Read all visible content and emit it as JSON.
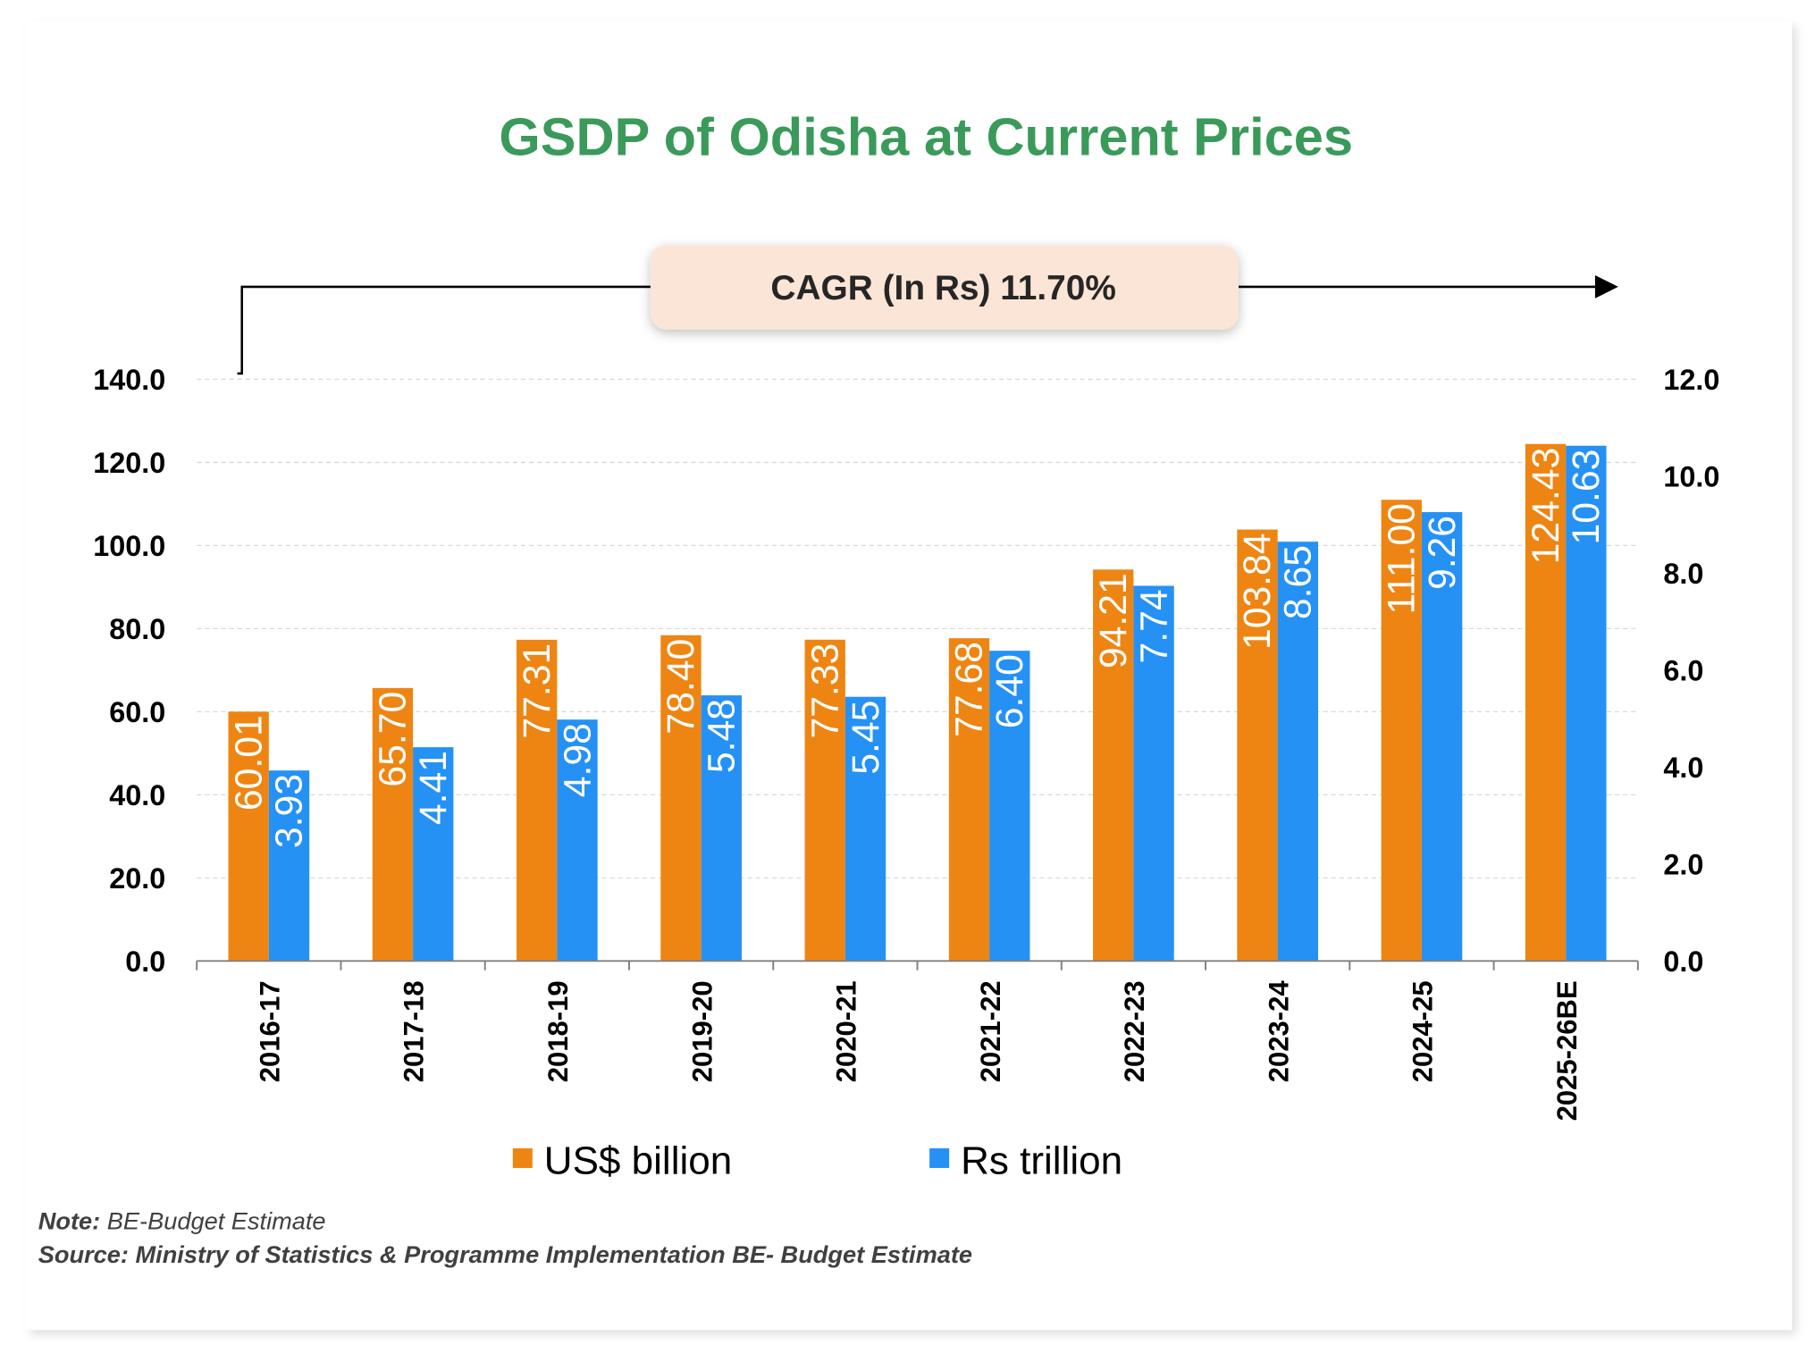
{
  "chart_data": {
    "type": "bar",
    "title": "GSDP of Odisha at Current Prices",
    "annotation": "CAGR (In Rs) 11.70%",
    "categories": [
      "2016-17",
      "2017-18",
      "2018-19",
      "2019-20",
      "2020-21",
      "2021-22",
      "2022-23",
      "2023-24",
      "2024-25",
      "2025-26BE"
    ],
    "series": [
      {
        "name": "US$ billion",
        "axis": "left",
        "color": "#EE8512",
        "values": [
          60.01,
          65.7,
          77.31,
          78.4,
          77.33,
          77.68,
          94.21,
          103.84,
          111.0,
          124.43
        ],
        "labels": [
          "60.01",
          "65.70",
          "77.31",
          "78.40",
          "77.33",
          "77.68",
          "94.21",
          "103.84",
          "111.00",
          "124.43"
        ]
      },
      {
        "name": "Rs trillion",
        "axis": "right",
        "color": "#2591F5",
        "values": [
          3.93,
          4.41,
          4.98,
          5.48,
          5.45,
          6.4,
          7.74,
          8.65,
          9.26,
          10.63
        ],
        "labels": [
          "3.93",
          "4.41",
          "4.98",
          "5.48",
          "5.45",
          "6.40",
          "7.74",
          "8.65",
          "9.26",
          "10.63"
        ]
      }
    ],
    "y_left": {
      "range": [
        0,
        140
      ],
      "ticks": [
        "0.0",
        "20.0",
        "40.0",
        "60.0",
        "80.0",
        "100.0",
        "120.0",
        "140.0"
      ]
    },
    "y_right": {
      "range": [
        0,
        12
      ],
      "ticks": [
        "0.0",
        "2.0",
        "4.0",
        "6.0",
        "8.0",
        "10.0",
        "12.0"
      ]
    },
    "grid": true,
    "legend_placement": "bottom",
    "title_color": "#3A9A5A"
  },
  "notes": {
    "note_label": "Note:",
    "note_text": " BE-Budget Estimate",
    "source": "Source: Ministry of Statistics & Programme Implementation BE- Budget Estimate"
  }
}
